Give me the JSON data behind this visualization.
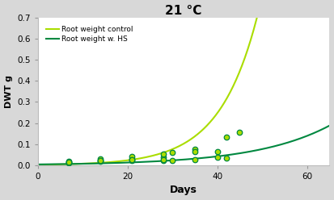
{
  "title": "21 °C",
  "xlabel": "Days",
  "ylabel": "DWT g",
  "xlim": [
    0,
    65
  ],
  "ylim": [
    0,
    0.7
  ],
  "xticks": [
    0,
    20,
    40,
    60
  ],
  "yticks": [
    0.0,
    0.1,
    0.2,
    0.3,
    0.4,
    0.5,
    0.6,
    0.7
  ],
  "bg_color": "#ffffff",
  "fig_bg_color": "#d8d8d8",
  "control_color": "#aadd00",
  "hs_color": "#008840",
  "legend_control": "Root weight control",
  "legend_hs": "Root weight w. HS",
  "control_params": {
    "a": 0.0022,
    "b": 0.118
  },
  "hs_params": {
    "a": 0.0038,
    "b": 0.06
  },
  "control_points_x": [
    7,
    7,
    14,
    14,
    21,
    21,
    28,
    28,
    30,
    35,
    35,
    40,
    42,
    45
  ],
  "control_points_y": [
    0.016,
    0.02,
    0.022,
    0.03,
    0.03,
    0.042,
    0.038,
    0.052,
    0.062,
    0.075,
    0.065,
    0.065,
    0.132,
    0.157
  ],
  "hs_points_x": [
    7,
    7,
    14,
    14,
    21,
    21,
    28,
    28,
    30,
    35,
    40,
    42
  ],
  "hs_points_y": [
    0.01,
    0.015,
    0.02,
    0.022,
    0.022,
    0.028,
    0.024,
    0.028,
    0.023,
    0.025,
    0.036,
    0.032
  ]
}
